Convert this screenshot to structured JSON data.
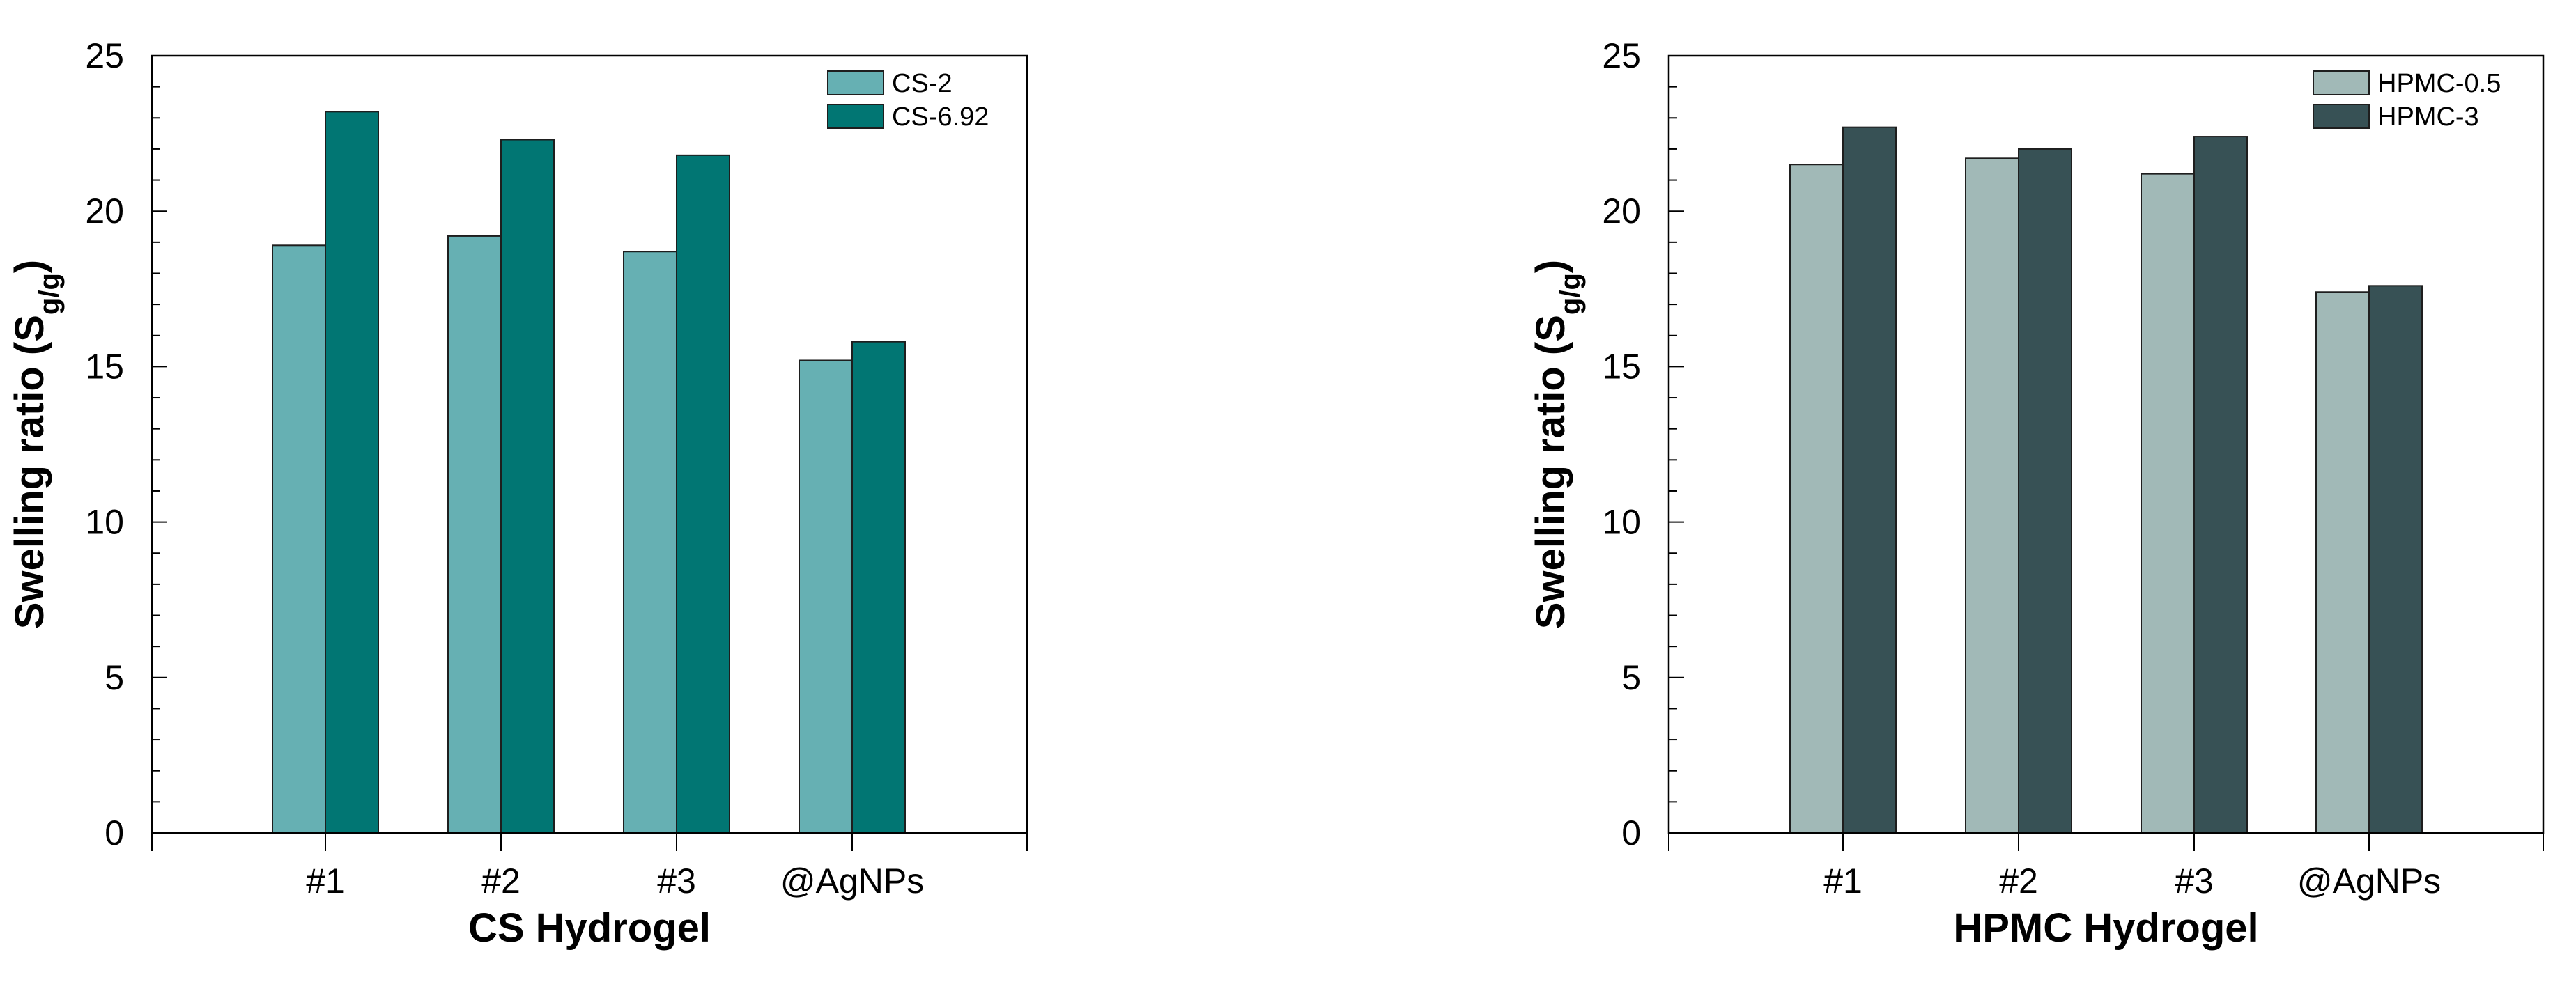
{
  "chart_data": [
    {
      "type": "bar",
      "xlabel": "CS Hydrogel",
      "ylabel": "Swelling ratio (Sg/g)",
      "ylabel_main": "Swelling ratio (S",
      "ylabel_sub": "g/g",
      "ylabel_close": ")",
      "ylim": [
        0,
        25
      ],
      "yticks": [
        0,
        5,
        10,
        15,
        20,
        25
      ],
      "grid": false,
      "legend_position": "top-right",
      "categories": [
        "#1",
        "#2",
        "#3",
        "@AgNPs"
      ],
      "series": [
        {
          "name": "CS-2",
          "color": "#66b0b3",
          "values": [
            18.9,
            19.2,
            18.7,
            15.2
          ]
        },
        {
          "name": "CS-6.92",
          "color": "#017673",
          "values": [
            23.2,
            22.3,
            21.8,
            15.8
          ]
        }
      ]
    },
    {
      "type": "bar",
      "xlabel": "HPMC Hydrogel",
      "ylabel": "Swelling ratio (Sg/g)",
      "ylabel_main": "Swelling ratio (S",
      "ylabel_sub": "g/g",
      "ylabel_close": ")",
      "ylim": [
        0,
        25
      ],
      "yticks": [
        0,
        5,
        10,
        15,
        20,
        25
      ],
      "grid": false,
      "legend_position": "top-right",
      "categories": [
        "#1",
        "#2",
        "#3",
        "@AgNPs"
      ],
      "series": [
        {
          "name": "HPMC-0.5",
          "color": "#a1b9b7",
          "values": [
            21.5,
            21.7,
            21.2,
            17.4
          ]
        },
        {
          "name": "HPMC-3",
          "color": "#375155",
          "values": [
            22.7,
            22.0,
            22.4,
            17.6
          ]
        }
      ]
    }
  ]
}
